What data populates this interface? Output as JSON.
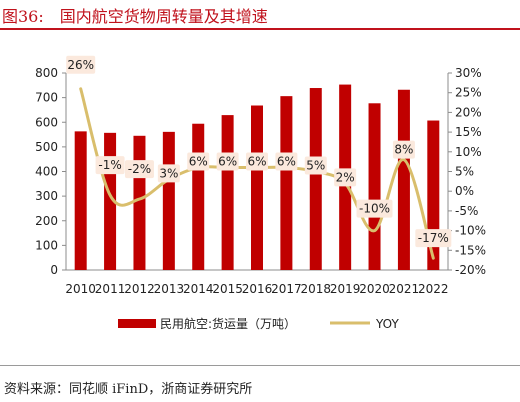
{
  "figure": {
    "number": "图36:",
    "title": "国内航空货物周转量及其增速",
    "source": "资料来源：同花顺 iFinD，浙商证券研究所"
  },
  "colors": {
    "bar": "#c00000",
    "line": "#d9be6c",
    "label_bg": "#fbe9dd",
    "title": "#c0121c"
  },
  "chart_data": {
    "type": "bar",
    "categories": [
      "2010",
      "2011",
      "2012",
      "2013",
      "2014",
      "2015",
      "2016",
      "2017",
      "2018",
      "2019",
      "2020",
      "2021",
      "2022"
    ],
    "series": [
      {
        "name": "民用航空:货运量（万吨）",
        "type": "bar",
        "axis": "left",
        "values": [
          563,
          557,
          545,
          561,
          594,
          629,
          668,
          706,
          739,
          753,
          677,
          732,
          607
        ]
      },
      {
        "name": "YOY",
        "type": "line",
        "axis": "right",
        "smooth": true,
        "values": [
          26,
          -1,
          -2,
          3,
          6,
          6,
          6,
          6,
          5,
          2,
          -10,
          8,
          -17
        ],
        "labels": [
          "26%",
          "-1%",
          "-2%",
          "3%",
          "6%",
          "6%",
          "6%",
          "6%",
          "5%",
          "2%",
          "-10%",
          "8%",
          "-17%"
        ]
      }
    ],
    "ylim_left": [
      0,
      800
    ],
    "yticks_left": [
      "0",
      "100",
      "200",
      "300",
      "400",
      "500",
      "600",
      "700",
      "800"
    ],
    "ylim_right": [
      -20,
      30
    ],
    "yticks_right": [
      "-20%",
      "-15%",
      "-10%",
      "-5%",
      "0%",
      "5%",
      "10%",
      "15%",
      "20%",
      "25%",
      "30%"
    ],
    "grid": false,
    "legend": "bottom"
  }
}
